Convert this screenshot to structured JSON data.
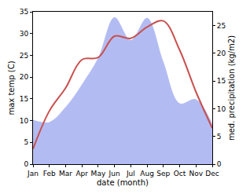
{
  "chart_data": {
    "type": "line",
    "categories": [
      "Jan",
      "Feb",
      "Mar",
      "Apr",
      "May",
      "Jun",
      "Jul",
      "Aug",
      "Sep",
      "Oct",
      "Nov",
      "Dec"
    ],
    "xlabel": "date (month)",
    "ylabel": "max temp (C)",
    "y2label": "med. precipitation (kg/m2)",
    "ylim": [
      0,
      35
    ],
    "yticks": [
      0,
      5,
      10,
      15,
      20,
      25,
      30,
      35
    ],
    "y2lim": [
      0,
      27.5
    ],
    "y2ticks": [
      0,
      5,
      10,
      15,
      20,
      25
    ],
    "grid": false,
    "series": [
      {
        "type": "area",
        "axis": "y2",
        "color": "#b3bcf2",
        "values": [
          8,
          7.6,
          10.3,
          14.4,
          19.2,
          26.5,
          22.4,
          26.4,
          18.5,
          11,
          11.7,
          7.3
        ]
      },
      {
        "type": "line",
        "color": "#c9504f",
        "values": [
          3.5,
          12.2,
          17.5,
          24,
          24.5,
          29.4,
          28.9,
          31.5,
          32.9,
          26.2,
          16.6,
          8.3
        ]
      }
    ]
  }
}
